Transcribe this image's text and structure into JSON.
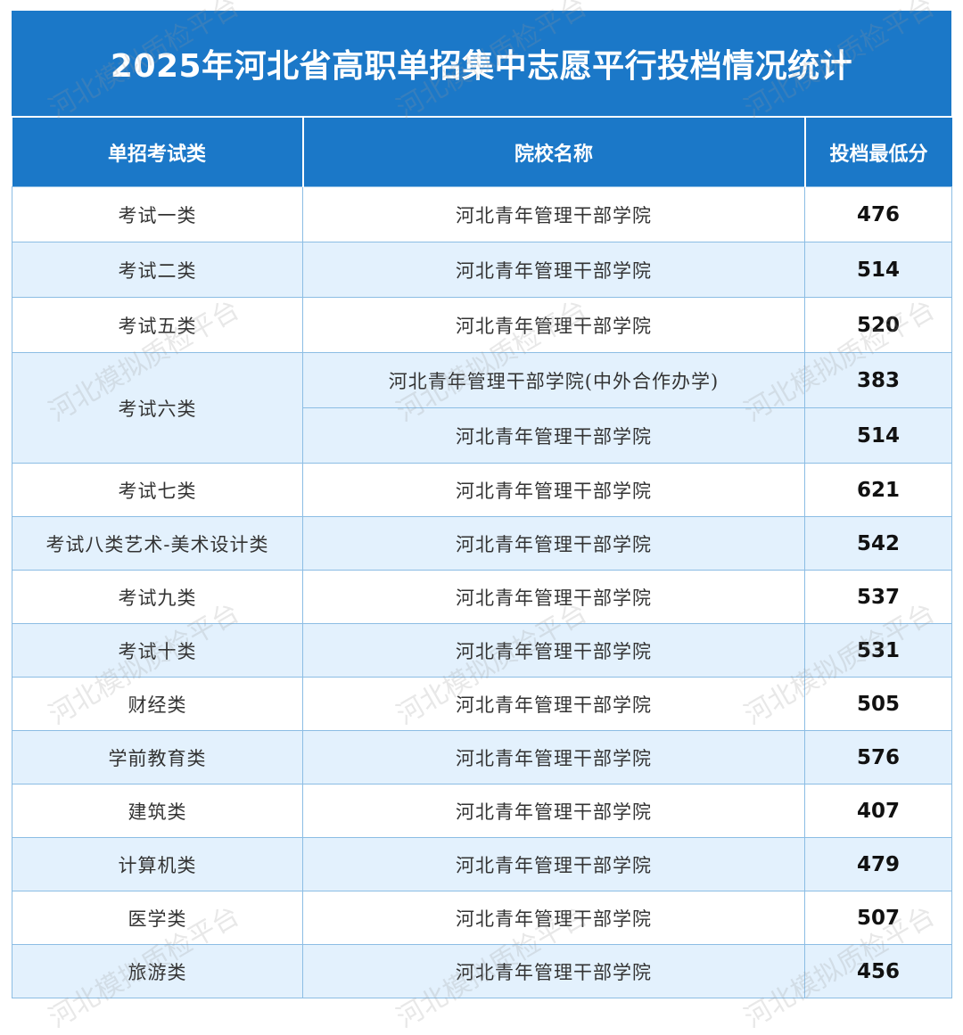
{
  "title": "2025年河北省高职单招集中志愿平行投档情况统计",
  "headers": {
    "category": "单招考试类",
    "school": "院校名称",
    "score": "投档最低分"
  },
  "rows": [
    {
      "category": "考试一类",
      "school": "河北青年管理干部学院",
      "score": "476"
    },
    {
      "category": "考试二类",
      "school": "河北青年管理干部学院",
      "score": "514"
    },
    {
      "category": "考试五类",
      "school": "河北青年管理干部学院",
      "score": "520"
    },
    {
      "category": "考试六类",
      "school": "河北青年管理干部学院(中外合作办学)",
      "score": "383"
    },
    {
      "category": "",
      "school": "河北青年管理干部学院",
      "score": "514"
    },
    {
      "category": "考试七类",
      "school": "河北青年管理干部学院",
      "score": "621"
    },
    {
      "category": "考试八类艺术-美术设计类",
      "school": "河北青年管理干部学院",
      "score": "542"
    },
    {
      "category": "考试九类",
      "school": "河北青年管理干部学院",
      "score": "537"
    },
    {
      "category": "考试十类",
      "school": "河北青年管理干部学院",
      "score": "531"
    },
    {
      "category": "财经类",
      "school": "河北青年管理干部学院",
      "score": "505"
    },
    {
      "category": "学前教育类",
      "school": "河北青年管理干部学院",
      "score": "576"
    },
    {
      "category": "建筑类",
      "school": "河北青年管理干部学院",
      "score": "407"
    },
    {
      "category": "计算机类",
      "school": "河北青年管理干部学院",
      "score": "479"
    },
    {
      "category": "医学类",
      "school": "河北青年管理干部学院",
      "score": "507"
    },
    {
      "category": "旅游类",
      "school": "河北青年管理干部学院",
      "score": "456"
    }
  ],
  "watermark": "河北模拟质检平台",
  "colors": {
    "header_blue": "#1b78c8",
    "row_alt": "#e3f1fd",
    "border": "#8cbde4"
  }
}
